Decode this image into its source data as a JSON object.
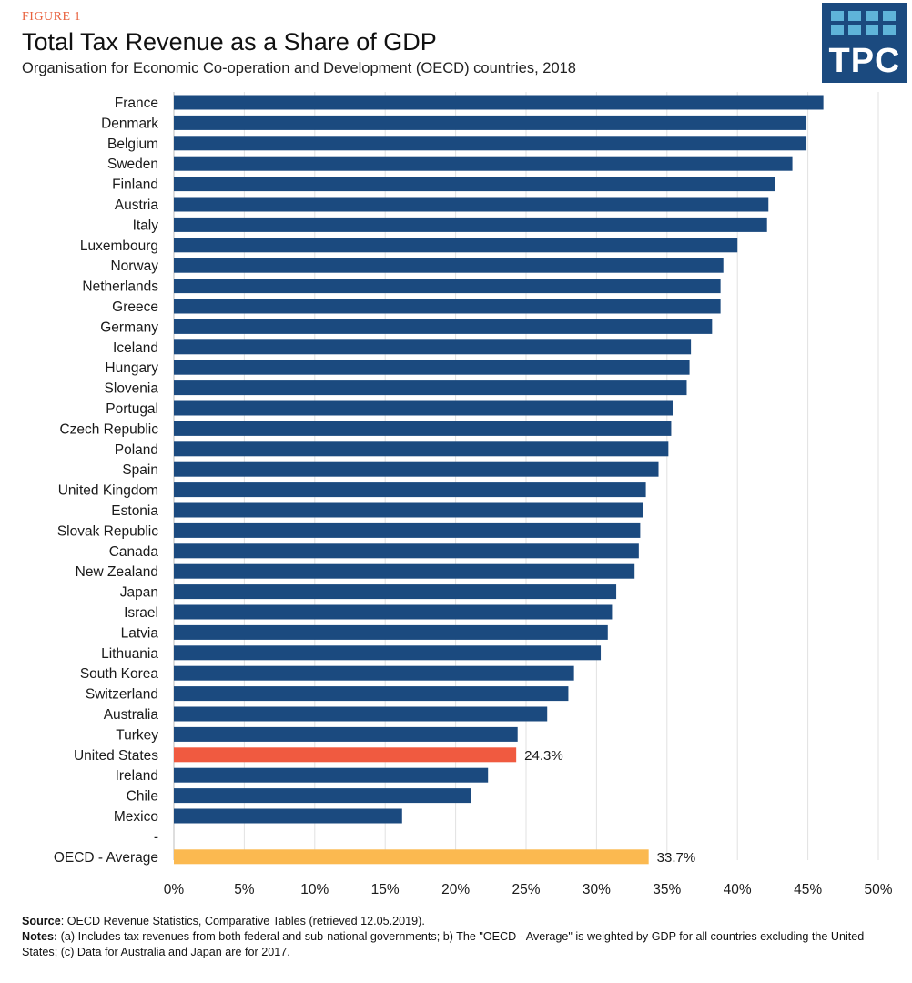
{
  "header": {
    "figure_label": "FIGURE 1",
    "title": "Total Tax Revenue as a Share of GDP",
    "subtitle": "Organisation for Economic Co-operation and Development (OECD) countries, 2018"
  },
  "logo": {
    "text": "TPC"
  },
  "colors": {
    "default_bar": "#1b4a7f",
    "highlight_bar": "#f05a40",
    "average_bar": "#fbb950",
    "gridline": "#e2e2e2"
  },
  "chart_data": {
    "type": "bar",
    "orientation": "horizontal",
    "xlim": [
      0,
      50
    ],
    "xticks": [
      0,
      5,
      10,
      15,
      20,
      25,
      30,
      35,
      40,
      45,
      50
    ],
    "xtick_labels": [
      "0%",
      "5%",
      "10%",
      "15%",
      "20%",
      "25%",
      "30%",
      "35%",
      "40%",
      "45%",
      "50%"
    ],
    "grid": true,
    "categories": [
      "France",
      "Denmark",
      "Belgium",
      "Sweden",
      "Finland",
      "Austria",
      "Italy",
      "Luxembourg",
      "Norway",
      "Netherlands",
      "Greece",
      "Germany",
      "Iceland",
      "Hungary",
      "Slovenia",
      "Portugal",
      "Czech Republic",
      "Poland",
      "Spain",
      "United Kingdom",
      "Estonia",
      "Slovak Republic",
      "Canada",
      "New Zealand",
      "Japan",
      "Israel",
      "Latvia",
      "Lithuania",
      "South Korea",
      "Switzerland",
      "Australia",
      "Turkey",
      "United States",
      "Ireland",
      "Chile",
      "Mexico",
      "-",
      "OECD - Average"
    ],
    "values": [
      46.1,
      44.9,
      44.9,
      43.9,
      42.7,
      42.2,
      42.1,
      40.0,
      39.0,
      38.8,
      38.8,
      38.2,
      36.7,
      36.6,
      36.4,
      35.4,
      35.3,
      35.1,
      34.4,
      33.5,
      33.3,
      33.1,
      33.0,
      32.7,
      31.4,
      31.1,
      30.8,
      30.3,
      28.4,
      28.0,
      26.5,
      24.4,
      24.3,
      22.3,
      21.1,
      16.2,
      null,
      33.7
    ],
    "bar_types": [
      "default",
      "default",
      "default",
      "default",
      "default",
      "default",
      "default",
      "default",
      "default",
      "default",
      "default",
      "default",
      "default",
      "default",
      "default",
      "default",
      "default",
      "default",
      "default",
      "default",
      "default",
      "default",
      "default",
      "default",
      "default",
      "default",
      "default",
      "default",
      "default",
      "default",
      "default",
      "default",
      "highlight",
      "default",
      "default",
      "default",
      "spacer",
      "average"
    ],
    "data_labels": [
      {
        "category": "United States",
        "text": "24.3%"
      },
      {
        "category": "OECD - Average",
        "text": "33.7%"
      }
    ]
  },
  "footer": {
    "source_label": "Source",
    "source_text": ": OECD Revenue Statistics, Comparative Tables (retrieved 12.05.2019).",
    "notes_label": "Notes:",
    "notes_text": " (a) Includes tax revenues from both federal and sub-national governments; b) The \"OECD - Average\" is weighted by GDP for all countries excluding the United States; (c) Data for Australia and Japan are for 2017."
  }
}
